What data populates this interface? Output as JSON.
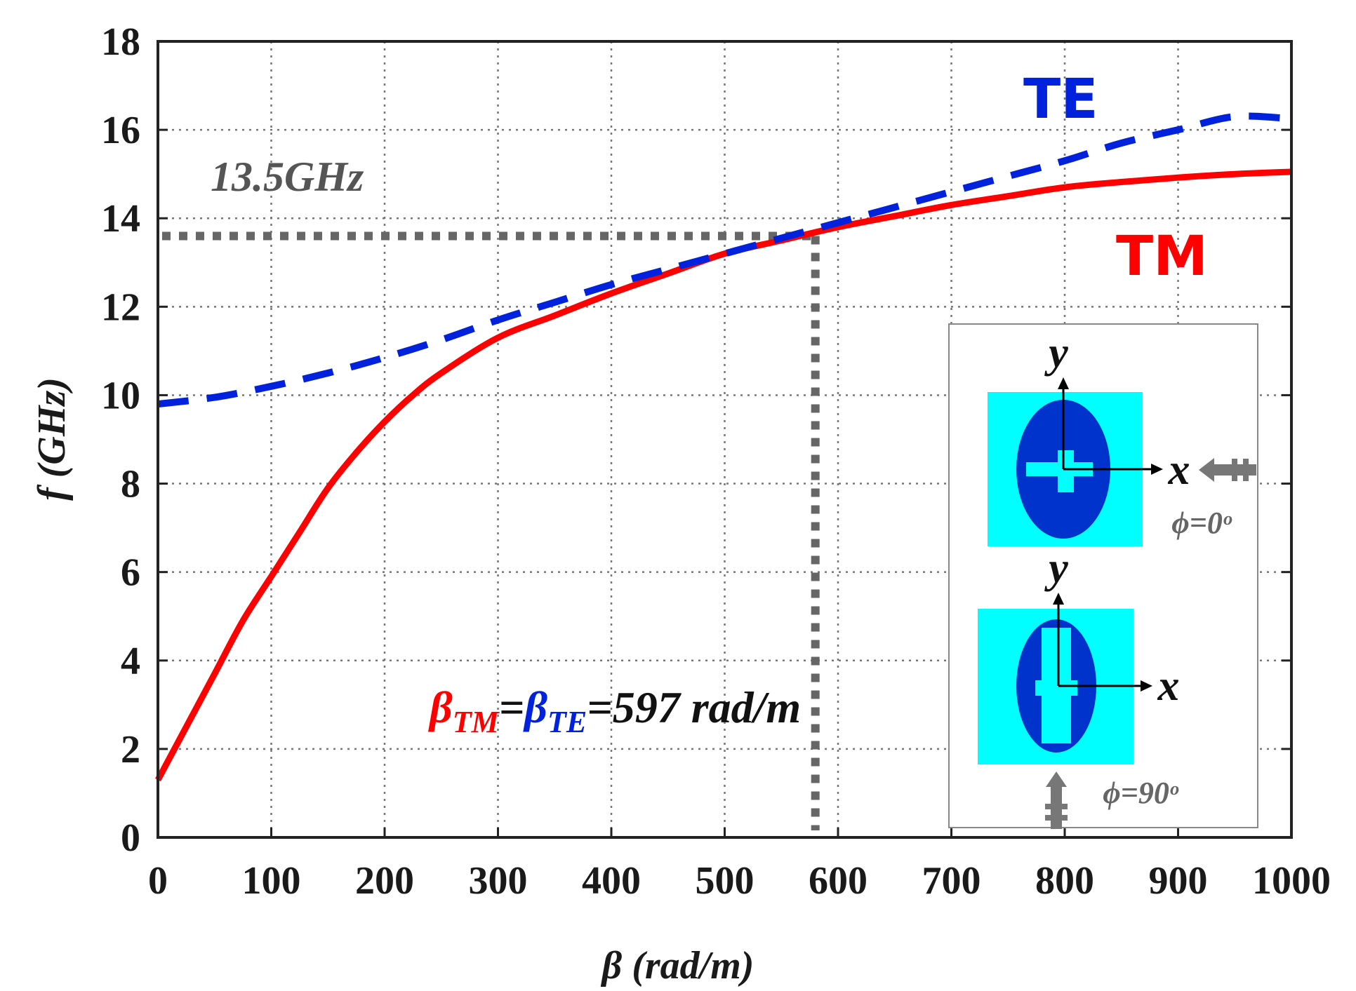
{
  "chart_data": {
    "type": "line",
    "xlabel_symbol": "β",
    "xlabel_unit": " (rad/m)",
    "ylabel": "f (GHz)",
    "xlim": [
      0,
      1000
    ],
    "ylim": [
      0,
      18
    ],
    "x_ticks": [
      0,
      100,
      200,
      300,
      400,
      500,
      600,
      700,
      800,
      900,
      1000
    ],
    "y_ticks": [
      0,
      2,
      4,
      6,
      8,
      10,
      12,
      14,
      16,
      18
    ],
    "grid": true,
    "series": [
      {
        "name": "TM",
        "color": "#ff0000",
        "style": "solid",
        "x": [
          0,
          25,
          50,
          75,
          100,
          125,
          150,
          175,
          200,
          225,
          250,
          300,
          350,
          400,
          450,
          500,
          550,
          600,
          650,
          700,
          750,
          800,
          850,
          900,
          950,
          1000
        ],
        "y": [
          1.3,
          2.5,
          3.7,
          4.9,
          5.9,
          6.9,
          7.9,
          8.7,
          9.4,
          10.0,
          10.5,
          11.3,
          11.8,
          12.3,
          12.75,
          13.2,
          13.5,
          13.8,
          14.05,
          14.3,
          14.5,
          14.7,
          14.82,
          14.92,
          15.0,
          15.05
        ]
      },
      {
        "name": "TE",
        "color": "#0022dd",
        "style": "dashed",
        "x": [
          0,
          50,
          100,
          150,
          200,
          250,
          300,
          350,
          400,
          450,
          500,
          550,
          600,
          650,
          700,
          750,
          800,
          850,
          900,
          950,
          1000
        ],
        "y": [
          9.8,
          9.95,
          10.2,
          10.5,
          10.85,
          11.25,
          11.7,
          12.1,
          12.5,
          12.85,
          13.2,
          13.55,
          13.9,
          14.25,
          14.6,
          14.95,
          15.3,
          15.7,
          16.0,
          16.3,
          16.25
        ]
      }
    ],
    "annotations": {
      "freq_label": "13.5GHz",
      "crossing": {
        "x": 580,
        "y": 13.6
      },
      "te_label": "TE",
      "tm_label": "TM",
      "beta_tm": "β",
      "beta_tm_sub": "TM",
      "beta_eq": "=",
      "beta_te": "β",
      "beta_te_sub": "TE",
      "beta_value": "=597 rad/m"
    },
    "inset": {
      "top_x_label": "x",
      "top_y_label": "y",
      "top_phi": "ϕ=0ᵒ",
      "bottom_x_label": "x",
      "bottom_y_label": "y",
      "bottom_phi": "ϕ=90ᵒ"
    }
  },
  "colors": {
    "tm": "#ff0000",
    "te": "#0022dd",
    "patch_bg": "#00ffff",
    "patch_ellipse": "#0033cc",
    "guide": "#666666",
    "arrow": "#777777"
  }
}
